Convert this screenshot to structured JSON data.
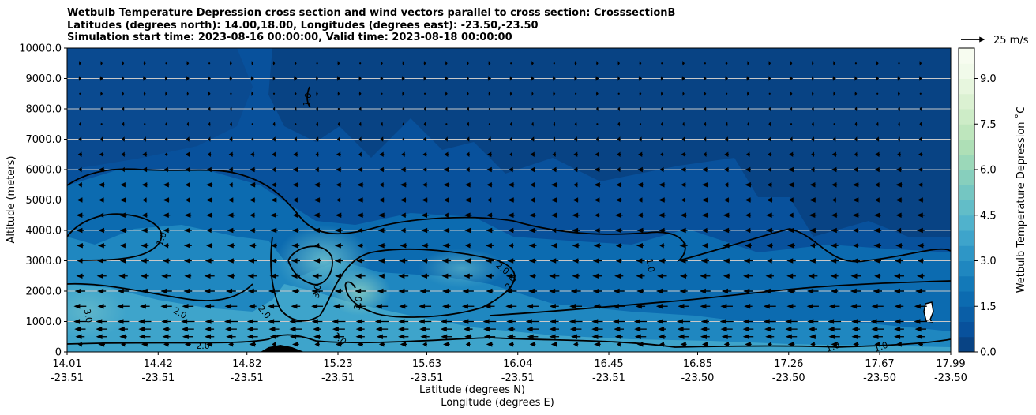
{
  "chart_data": {
    "type": "heatmap",
    "title_lines": [
      "Wetbulb Temperature Depression cross section and wind vectors parallel to cross section: CrosssectionB",
      "Latitudes (degrees north): 14.00,18.00, Longitudes (degrees east): -23.50,-23.50",
      "Simulation start time: 2023-08-16 00:00:00, Valid time: 2023-08-18 00:00:00"
    ],
    "ylabel": "Altitude (meters)",
    "xlabel_lat": "Latitude (degrees N)",
    "xlabel_lon": "Longitude (degrees E)",
    "ylim": [
      0,
      10000
    ],
    "xlim": [
      14.01,
      17.99
    ],
    "y_ticks": [
      "0",
      "1000.0",
      "2000.0",
      "3000.0",
      "4000.0",
      "5000.0",
      "6000.0",
      "7000.0",
      "8000.0",
      "9000.0",
      "10000.0"
    ],
    "y_tick_values": [
      0,
      1000,
      2000,
      3000,
      4000,
      5000,
      6000,
      7000,
      8000,
      9000,
      10000
    ],
    "x_ticks_lat": [
      "14.01",
      "14.42",
      "14.82",
      "15.23",
      "15.63",
      "16.04",
      "16.45",
      "16.85",
      "17.26",
      "17.67",
      "17.99"
    ],
    "x_ticks_lon": [
      "-23.51",
      "-23.51",
      "-23.51",
      "-23.51",
      "-23.51",
      "-23.51",
      "-23.51",
      "-23.50",
      "-23.50",
      "-23.50",
      "-23.50"
    ],
    "x_tick_values": [
      14.01,
      14.42,
      14.82,
      15.23,
      15.63,
      16.04,
      16.45,
      16.85,
      17.26,
      17.67,
      17.99
    ],
    "horizontal_grid": true,
    "colorbar": {
      "label": "Wetbulb Temperature Depression ˚C",
      "range": [
        0,
        10
      ],
      "ticks": [
        "0.0",
        "1.5",
        "3.0",
        "4.5",
        "6.0",
        "7.5",
        "9.0"
      ],
      "tick_values": [
        0,
        1.5,
        3,
        4.5,
        6,
        7.5,
        9
      ],
      "colors": [
        "#084384",
        "#08519c",
        "#0a5ea6",
        "#0c6bb0",
        "#1379b8",
        "#1f87c0",
        "#2e96c6",
        "#3ea4cb",
        "#50b2cc",
        "#62bdc8",
        "#74c6c2",
        "#87cfbd",
        "#9bd8b9",
        "#aedfb6",
        "#bee6bd",
        "#cdecc7",
        "#dbf1d2",
        "#e7f6de",
        "#f1faea",
        "#f7fcf0"
      ]
    },
    "contour_labels": [
      "1.0",
      "1.0",
      "2.0",
      "2.0",
      "2.0",
      "3.0",
      "3.0",
      "3.0",
      "2.0",
      "2.0",
      "1.0",
      "1.0",
      "1.0",
      "1.0"
    ],
    "wind_key": {
      "label": "25 m/s",
      "speed": 25
    },
    "wind_vector_heights": [
      250,
      500,
      750,
      1000,
      1500,
      2000,
      2500,
      3000,
      3500,
      4000,
      4500,
      5000,
      5500,
      6000,
      6500,
      7000,
      7500,
      8000,
      8500,
      9000,
      9500
    ],
    "wind_speed_profile_ms": [
      {
        "alt": 250,
        "u": -6
      },
      {
        "alt": 500,
        "u": -10
      },
      {
        "alt": 750,
        "u": -11
      },
      {
        "alt": 1000,
        "u": -12
      },
      {
        "alt": 1500,
        "u": -11
      },
      {
        "alt": 2000,
        "u": -10
      },
      {
        "alt": 2500,
        "u": -9
      },
      {
        "alt": 3000,
        "u": -8
      },
      {
        "alt": 3500,
        "u": -7
      },
      {
        "alt": 4000,
        "u": -7
      },
      {
        "alt": 4500,
        "u": -7
      },
      {
        "alt": 5000,
        "u": -6
      },
      {
        "alt": 5500,
        "u": -6
      },
      {
        "alt": 6000,
        "u": -5
      },
      {
        "alt": 6500,
        "u": -4
      },
      {
        "alt": 7000,
        "u": -3
      },
      {
        "alt": 7500,
        "u": -2
      },
      {
        "alt": 8000,
        "u": -2
      },
      {
        "alt": 8500,
        "u": 2
      },
      {
        "alt": 9000,
        "u": 3
      },
      {
        "alt": 9500,
        "u": 2
      }
    ]
  },
  "colors": {
    "background": "#ffffff",
    "contour": "#000000",
    "grid": "#c8c8c8",
    "deep_blue": "#08519c"
  }
}
